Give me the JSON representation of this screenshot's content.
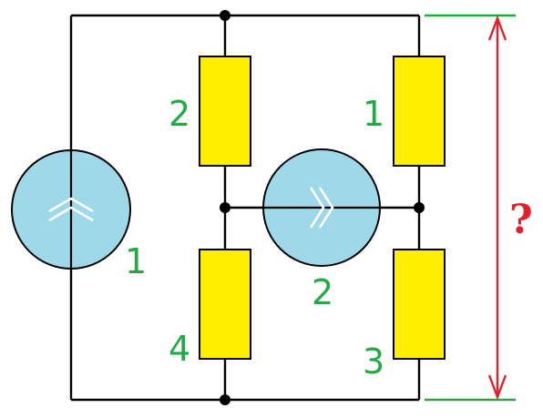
{
  "diagram": {
    "colors": {
      "wire": "#000000",
      "resistor_fill": "#ffee00",
      "resistor_stroke": "#000000",
      "source_fill": "#9fd8e8",
      "label": "#22aa44",
      "measure": "#e2202a",
      "guide": "#22aa44"
    },
    "sources": [
      {
        "label": "1",
        "direction": "up"
      },
      {
        "label": "2",
        "direction": "right"
      }
    ],
    "resistors": [
      {
        "label": "1"
      },
      {
        "label": "2"
      },
      {
        "label": "3"
      },
      {
        "label": "4"
      }
    ],
    "question": "?"
  }
}
